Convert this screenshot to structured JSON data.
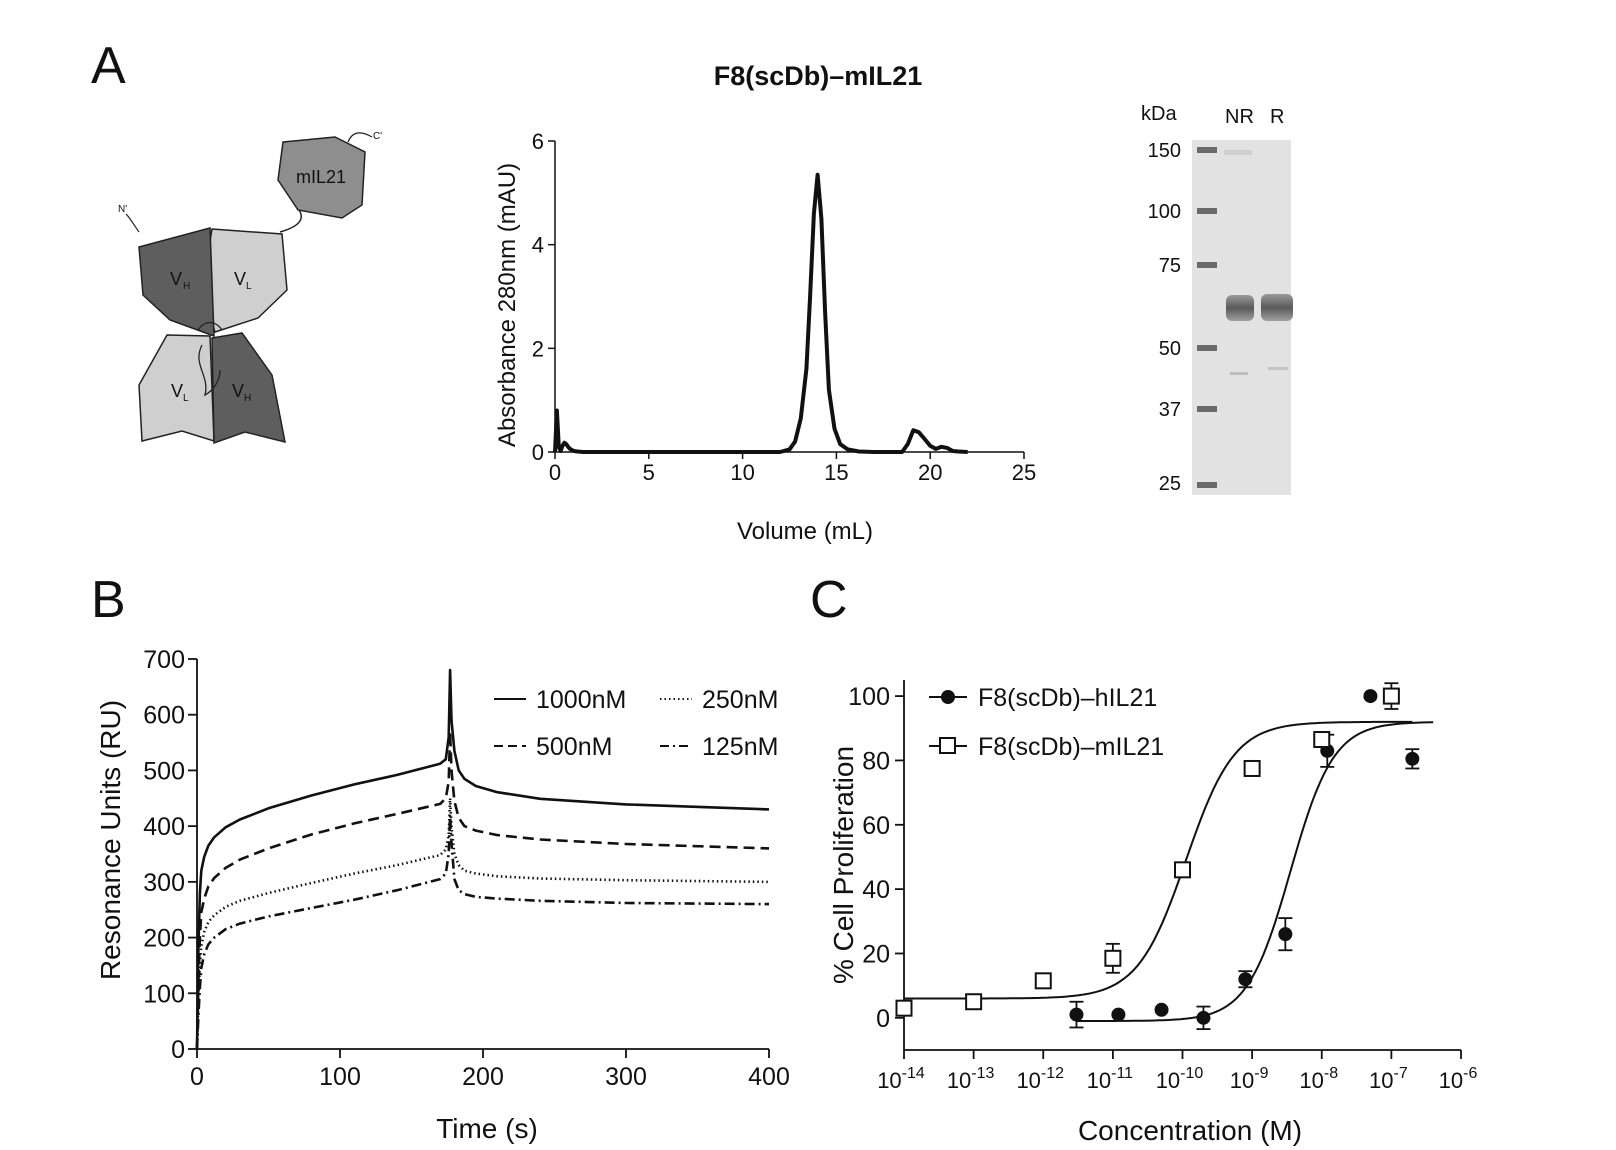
{
  "panel_labels": {
    "a": "A",
    "b": "B",
    "c": "C"
  },
  "schematic": {
    "domains": {
      "vh": "V",
      "vl": "V",
      "cytokine": "mIL21",
      "vh_sub": "H",
      "vl_sub": "L"
    },
    "termini": {
      "n": "N'",
      "c": "C'"
    }
  },
  "gel": {
    "unit_label": "kDa",
    "lanes": [
      "NR",
      "R"
    ],
    "markers": [
      "150",
      "100",
      "75",
      "50",
      "37",
      "25"
    ]
  },
  "chart_data": [
    {
      "id": "sec",
      "type": "line",
      "title": "F8(scDb)–mIL21",
      "xlabel": "Volume (mL)",
      "ylabel": "Absorbance 280nm (mAU)",
      "xlim": [
        0,
        25
      ],
      "ylim": [
        0,
        6
      ],
      "xticks": [
        "0",
        "5",
        "10",
        "15",
        "20",
        "25"
      ],
      "yticks": [
        "0",
        "2",
        "4",
        "6"
      ],
      "series": [
        {
          "x": [
            0,
            0.1,
            0.2,
            0.3,
            0.4,
            0.5,
            0.6,
            0.7,
            0.8,
            1.0,
            1.2,
            1.5,
            12.0,
            12.5,
            12.8,
            13.1,
            13.4,
            13.6,
            13.8,
            14.0,
            14.2,
            14.4,
            14.6,
            14.9,
            15.2,
            15.6,
            16.2,
            17.0,
            18.5,
            18.8,
            19.1,
            19.4,
            19.7,
            20.0,
            20.3,
            20.6,
            20.9,
            21.2,
            21.5,
            22.0
          ],
          "y": [
            0,
            0.8,
            0.1,
            0.02,
            0.12,
            0.18,
            0.15,
            0.1,
            0.06,
            0.02,
            0.01,
            0,
            0,
            0.05,
            0.2,
            0.65,
            1.6,
            3.0,
            4.6,
            5.35,
            4.5,
            2.7,
            1.2,
            0.45,
            0.15,
            0.05,
            0.01,
            0,
            0,
            0.15,
            0.42,
            0.38,
            0.25,
            0.12,
            0.06,
            0.1,
            0.08,
            0.02,
            0.01,
            0
          ]
        }
      ]
    },
    {
      "id": "spr",
      "type": "line",
      "xlabel": "Time (s)",
      "ylabel": "Resonance Units (RU)",
      "xlim": [
        0,
        400
      ],
      "ylim": [
        0,
        700
      ],
      "xticks": [
        "0",
        "100",
        "200",
        "300",
        "400"
      ],
      "yticks": [
        "0",
        "100",
        "200",
        "300",
        "400",
        "500",
        "600",
        "700"
      ],
      "legend_position": "top-right",
      "series": [
        {
          "name": "1000nM",
          "style": "solid",
          "x": [
            0,
            1,
            2,
            3,
            5,
            8,
            12,
            20,
            30,
            50,
            80,
            110,
            140,
            170,
            174,
            176,
            177,
            178,
            180,
            183,
            187,
            195,
            210,
            240,
            300,
            400
          ],
          "y": [
            0,
            180,
            280,
            320,
            345,
            365,
            380,
            398,
            412,
            432,
            455,
            475,
            492,
            512,
            520,
            560,
            680,
            590,
            535,
            500,
            485,
            472,
            461,
            449,
            439,
            430
          ]
        },
        {
          "name": "500nM",
          "style": "dashed",
          "x": [
            0,
            1,
            2,
            3,
            5,
            8,
            12,
            20,
            30,
            50,
            80,
            110,
            140,
            170,
            174,
            176,
            177,
            178,
            180,
            183,
            187,
            195,
            210,
            240,
            300,
            400
          ],
          "y": [
            0,
            120,
            200,
            245,
            270,
            292,
            307,
            325,
            340,
            360,
            385,
            405,
            422,
            440,
            450,
            480,
            570,
            500,
            445,
            415,
            400,
            392,
            384,
            376,
            368,
            360
          ]
        },
        {
          "name": "250nM",
          "style": "dotted",
          "x": [
            0,
            1,
            2,
            3,
            5,
            8,
            12,
            20,
            30,
            50,
            80,
            110,
            140,
            170,
            174,
            176,
            177,
            178,
            180,
            183,
            187,
            195,
            210,
            240,
            300,
            400
          ],
          "y": [
            0,
            90,
            150,
            185,
            210,
            228,
            240,
            255,
            266,
            280,
            298,
            315,
            330,
            348,
            358,
            385,
            450,
            400,
            350,
            330,
            320,
            315,
            310,
            306,
            303,
            300
          ]
        },
        {
          "name": "125nM",
          "style": "dashdot",
          "x": [
            0,
            1,
            2,
            3,
            5,
            8,
            12,
            20,
            30,
            50,
            80,
            110,
            140,
            170,
            174,
            176,
            177,
            178,
            180,
            183,
            187,
            195,
            210,
            240,
            300,
            400
          ],
          "y": [
            0,
            60,
            110,
            145,
            170,
            188,
            200,
            215,
            225,
            238,
            253,
            268,
            285,
            305,
            315,
            350,
            420,
            370,
            305,
            285,
            278,
            273,
            270,
            266,
            262,
            260
          ]
        }
      ]
    },
    {
      "id": "proliferation",
      "type": "scatter",
      "xlabel": "Concentration (M)",
      "ylabel": "% Cell Proliferation",
      "x_scale": "log",
      "xlim": [
        1e-14,
        1e-06
      ],
      "ylim": [
        -10,
        105
      ],
      "xticks": [
        {
          "base": "10",
          "exp": "-14"
        },
        {
          "base": "10",
          "exp": "-13"
        },
        {
          "base": "10",
          "exp": "-12"
        },
        {
          "base": "10",
          "exp": "-11"
        },
        {
          "base": "10",
          "exp": "-10"
        },
        {
          "base": "10",
          "exp": "-9"
        },
        {
          "base": "10",
          "exp": "-8"
        },
        {
          "base": "10",
          "exp": "-7"
        },
        {
          "base": "10",
          "exp": "-6"
        }
      ],
      "yticks": [
        "0",
        "20",
        "40",
        "60",
        "80",
        "100"
      ],
      "legend_position": "top-left",
      "series": [
        {
          "name": "F8(scDb)–hIL21",
          "marker": "filled-circle",
          "x": [
            3e-12,
            1.2e-11,
            5e-11,
            2e-10,
            8e-10,
            3e-09,
            1.2e-08,
            5e-08,
            2e-07
          ],
          "y": [
            1,
            1,
            2.5,
            0,
            12,
            26,
            83,
            100,
            80.5
          ],
          "err": [
            4,
            0,
            0,
            3.5,
            2.5,
            5,
            5,
            0,
            3
          ],
          "fit": {
            "bottom": -1,
            "top": 92,
            "log_ec50": -8.45,
            "hill": 1.4
          }
        },
        {
          "name": "F8(scDb)–mIL21",
          "marker": "open-square",
          "x": [
            1e-14,
            1e-13,
            1e-12,
            1e-11,
            1e-10,
            1e-09,
            1e-08,
            1e-07
          ],
          "y": [
            3,
            5,
            11.5,
            18.5,
            46,
            77.5,
            86.5,
            100
          ],
          "err": [
            0,
            0,
            2,
            4.5,
            0,
            2,
            2,
            4
          ],
          "fit": {
            "bottom": 6,
            "top": 92,
            "log_ec50": -9.95,
            "hill": 1.25
          }
        }
      ]
    }
  ]
}
